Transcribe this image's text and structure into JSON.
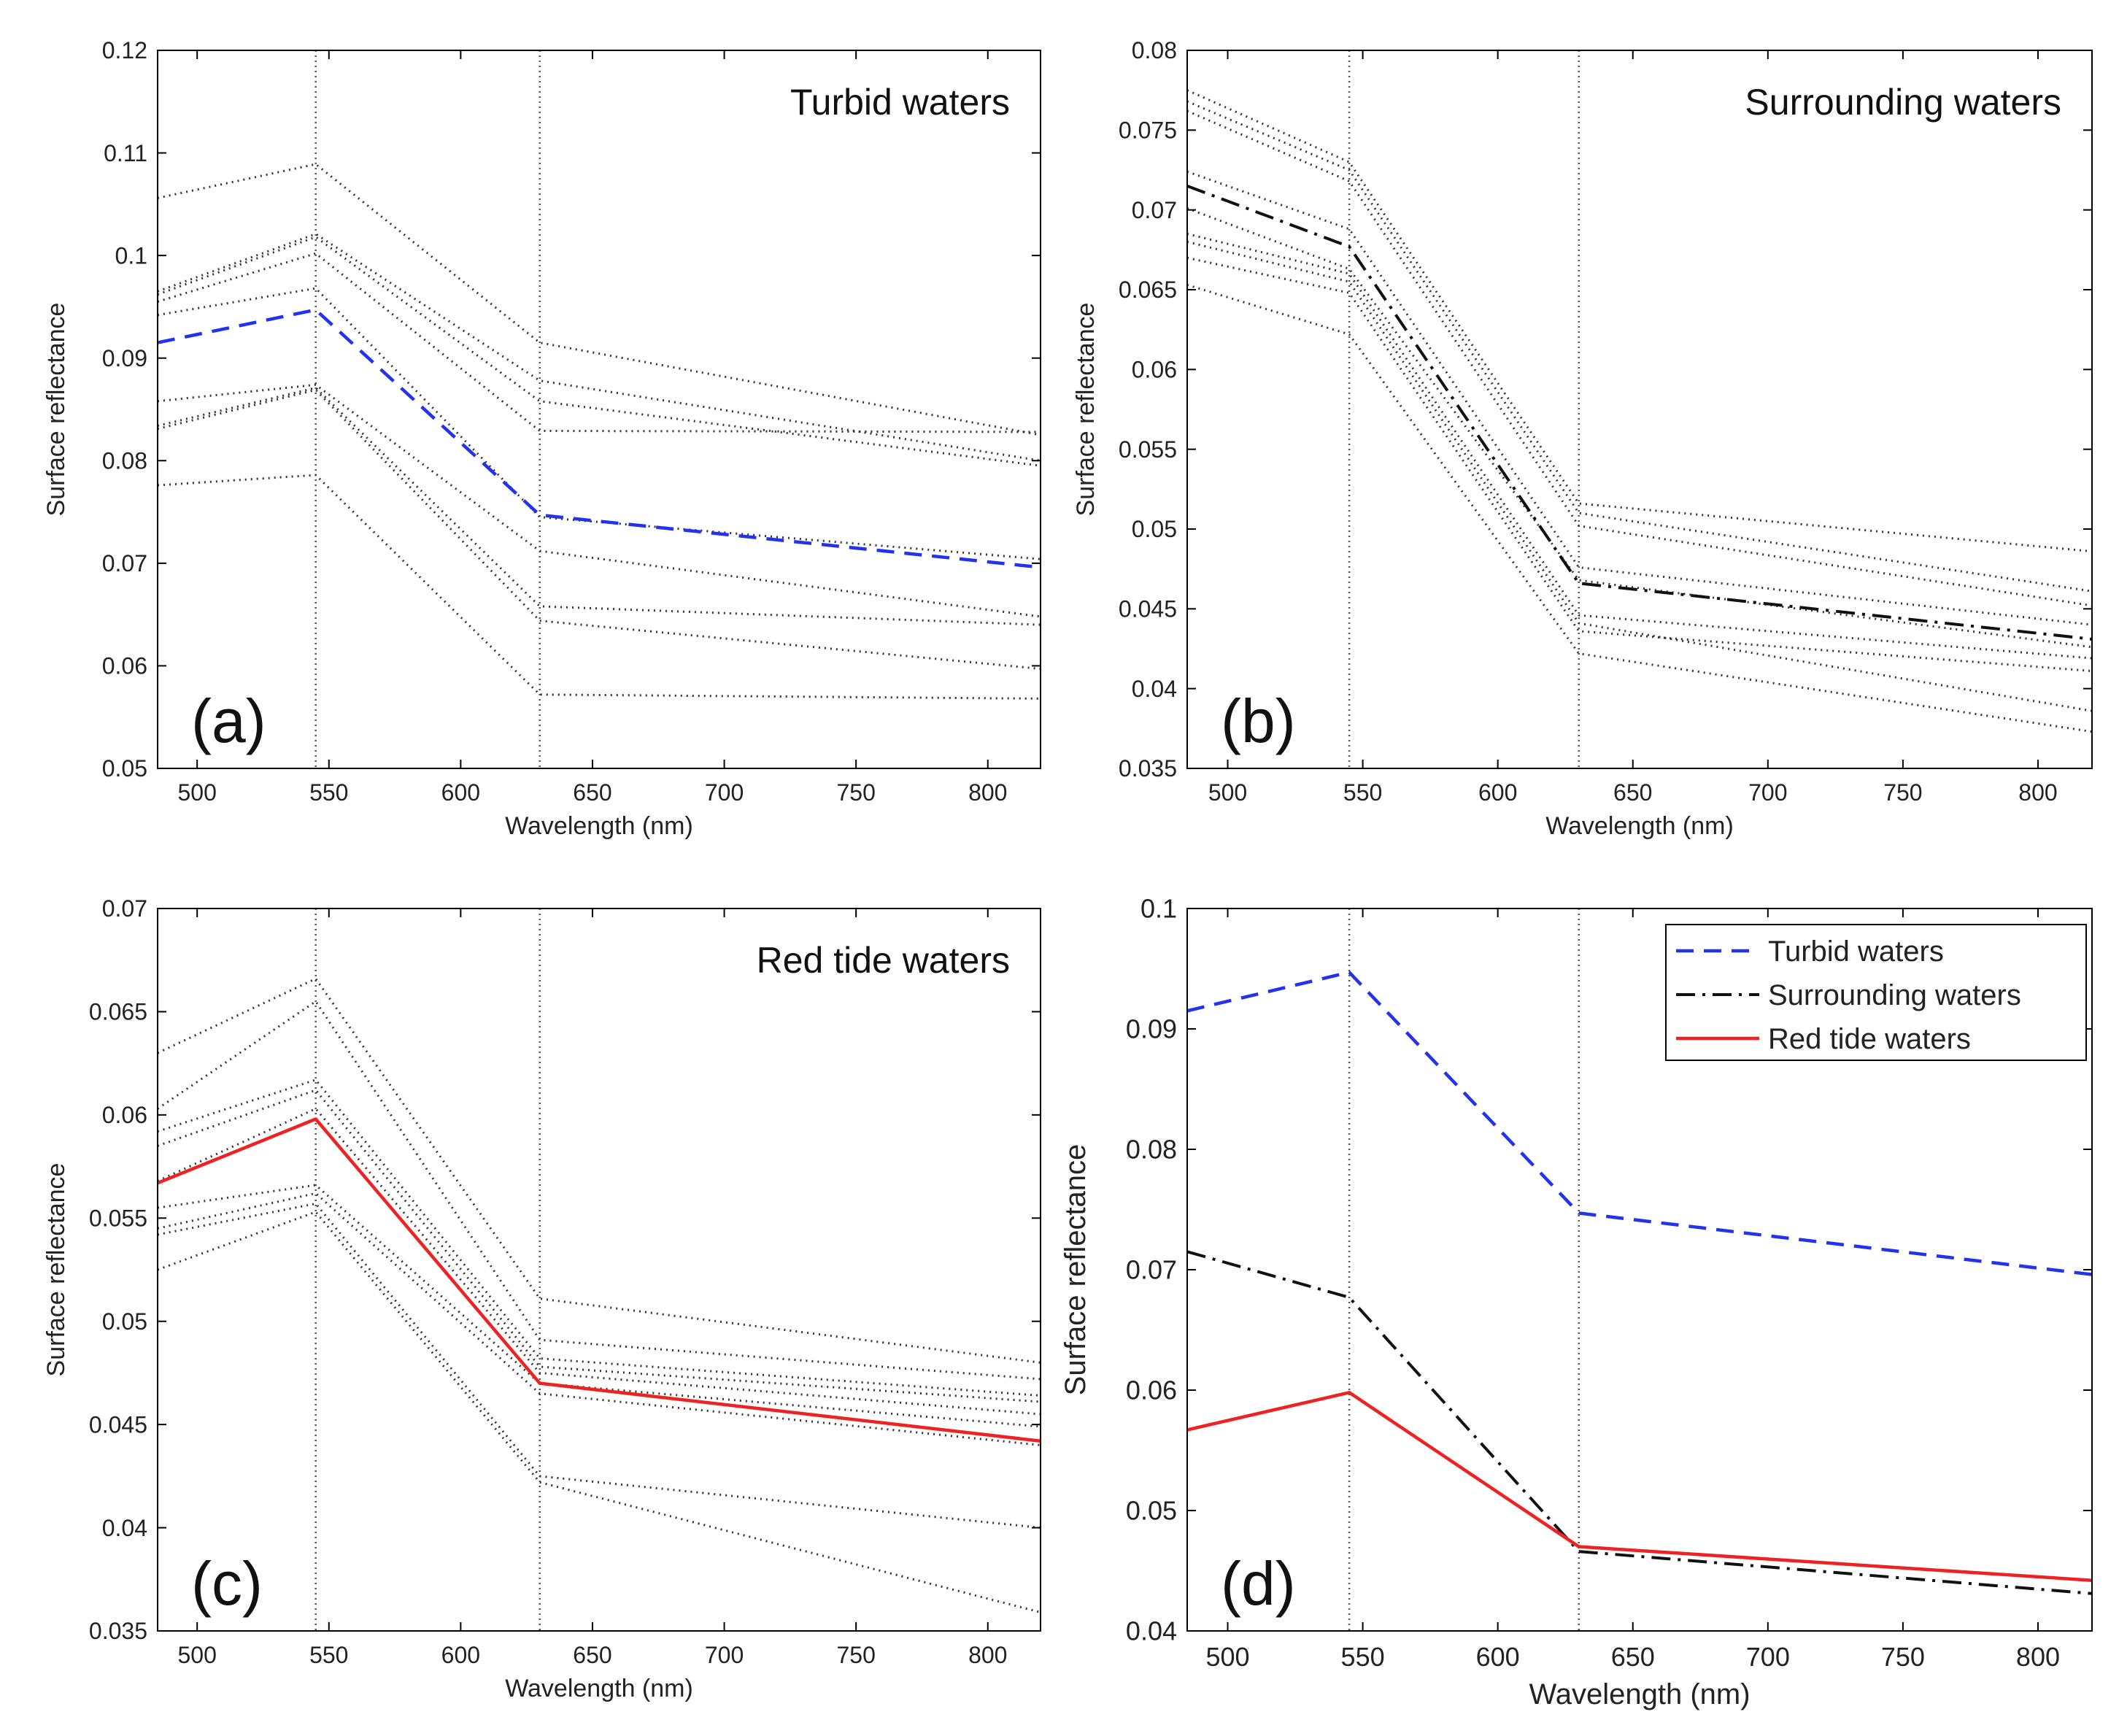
{
  "figure": {
    "x_label": "Wavelength (nm)",
    "y_label": "Surface reflectance"
  },
  "colors": {
    "turbid": "#2233ee",
    "surrounding": "#111111",
    "redtide": "#ee2222",
    "sample": "#333333",
    "vline": "#555555"
  },
  "chart_data": [
    {
      "type": "line",
      "panel": "a",
      "tag": "(a)",
      "title": "Turbid waters",
      "xlabel": "Wavelength (nm)",
      "ylabel": "Surface reflectance",
      "xlim": [
        485,
        820
      ],
      "ylim": [
        0.05,
        0.12
      ],
      "x_ticks": [
        500,
        550,
        600,
        650,
        700,
        750,
        800
      ],
      "y_ticks": [
        0.05,
        0.06,
        0.07,
        0.08,
        0.09,
        0.1,
        0.11,
        0.12
      ],
      "x_tick_labels": [
        "500",
        "550",
        "600",
        "650",
        "700",
        "750",
        "800"
      ],
      "y_tick_labels": [
        "0.05",
        "0.06",
        "0.07",
        "0.08",
        "0.09",
        "0.1",
        "0.11",
        "0.12"
      ],
      "vertical_lines": [
        545,
        630
      ],
      "x": [
        485,
        545,
        630,
        820
      ],
      "samples": [
        [
          0.1056,
          0.1089,
          0.0915,
          0.0825
        ],
        [
          0.0965,
          0.1021,
          0.0878,
          0.08
        ],
        [
          0.0962,
          0.1018,
          0.0858,
          0.0795
        ],
        [
          0.0955,
          0.1002,
          0.0829,
          0.0828
        ],
        [
          0.0942,
          0.0968,
          0.0745,
          0.0704
        ],
        [
          0.0858,
          0.0874,
          0.0712,
          0.0648
        ],
        [
          0.0834,
          0.0871,
          0.0658,
          0.064
        ],
        [
          0.0831,
          0.0869,
          0.0644,
          0.0597
        ],
        [
          0.0776,
          0.0786,
          0.0572,
          0.0568
        ]
      ],
      "series": [
        {
          "name": "Turbid waters mean",
          "style": "turbid",
          "values": [
            0.0915,
            0.0947,
            0.0747,
            0.0696
          ]
        }
      ]
    },
    {
      "type": "line",
      "panel": "b",
      "tag": "(b)",
      "title": "Surrounding waters",
      "xlabel": "Wavelength (nm)",
      "ylabel": "Surface reflectance",
      "xlim": [
        485,
        820
      ],
      "ylim": [
        0.035,
        0.08
      ],
      "x_ticks": [
        500,
        550,
        600,
        650,
        700,
        750,
        800
      ],
      "y_ticks": [
        0.035,
        0.04,
        0.045,
        0.05,
        0.055,
        0.06,
        0.065,
        0.07,
        0.075,
        0.08
      ],
      "x_tick_labels": [
        "500",
        "550",
        "600",
        "650",
        "700",
        "750",
        "800"
      ],
      "y_tick_labels": [
        "0.035",
        "0.04",
        "0.045",
        "0.05",
        "0.055",
        "0.06",
        "0.065",
        "0.07",
        "0.075",
        "0.08"
      ],
      "vertical_lines": [
        545,
        630
      ],
      "x": [
        485,
        545,
        630,
        820
      ],
      "samples": [
        [
          0.0775,
          0.073,
          0.0516,
          0.0486
        ],
        [
          0.0768,
          0.0725,
          0.051,
          0.0461
        ],
        [
          0.0762,
          0.0718,
          0.0502,
          0.0452
        ],
        [
          0.0724,
          0.0688,
          0.0476,
          0.044
        ],
        [
          0.0701,
          0.0663,
          0.0468,
          0.0426
        ],
        [
          0.0685,
          0.066,
          0.0446,
          0.0419
        ],
        [
          0.068,
          0.0655,
          0.0441,
          0.0386
        ],
        [
          0.067,
          0.0648,
          0.0436,
          0.0411
        ],
        [
          0.0653,
          0.0622,
          0.0422,
          0.0373
        ]
      ],
      "series": [
        {
          "name": "Surrounding waters mean",
          "style": "surrounding",
          "values": [
            0.0715,
            0.0677,
            0.0466,
            0.0431
          ]
        }
      ]
    },
    {
      "type": "line",
      "panel": "c",
      "tag": "(c)",
      "title": "Red tide waters",
      "xlabel": "Wavelength (nm)",
      "ylabel": "Surface reflectance",
      "xlim": [
        485,
        820
      ],
      "ylim": [
        0.035,
        0.07
      ],
      "x_ticks": [
        500,
        550,
        600,
        650,
        700,
        750,
        800
      ],
      "y_ticks": [
        0.035,
        0.04,
        0.045,
        0.05,
        0.055,
        0.06,
        0.065,
        0.07
      ],
      "x_tick_labels": [
        "500",
        "550",
        "600",
        "650",
        "700",
        "750",
        "800"
      ],
      "y_tick_labels": [
        "0.035",
        "0.04",
        "0.045",
        "0.05",
        "0.055",
        "0.06",
        "0.065",
        "0.07"
      ],
      "vertical_lines": [
        545,
        630
      ],
      "x": [
        485,
        545,
        630,
        820
      ],
      "samples": [
        [
          0.063,
          0.0666,
          0.0511,
          0.048
        ],
        [
          0.0603,
          0.0655,
          0.0491,
          0.0472
        ],
        [
          0.0592,
          0.0617,
          0.0482,
          0.0464
        ],
        [
          0.0585,
          0.0612,
          0.0478,
          0.0461
        ],
        [
          0.0568,
          0.0603,
          0.0475,
          0.0455
        ],
        [
          0.0555,
          0.0566,
          0.047,
          0.0449
        ],
        [
          0.0545,
          0.0562,
          0.0465,
          0.044
        ],
        [
          0.0542,
          0.0557,
          0.0425,
          0.04
        ],
        [
          0.0525,
          0.0553,
          0.0422,
          0.0359
        ]
      ],
      "series": [
        {
          "name": "Red tide waters mean",
          "style": "redtide",
          "values": [
            0.0567,
            0.0598,
            0.047,
            0.0442
          ]
        }
      ]
    },
    {
      "type": "line",
      "panel": "d",
      "tag": "(d)",
      "title": "",
      "xlabel": "Wavelength (nm)",
      "ylabel": "Surface reflectance",
      "xlim": [
        485,
        820
      ],
      "ylim": [
        0.04,
        0.1
      ],
      "x_ticks": [
        500,
        550,
        600,
        650,
        700,
        750,
        800
      ],
      "y_ticks": [
        0.04,
        0.05,
        0.06,
        0.07,
        0.08,
        0.09,
        0.1
      ],
      "x_tick_labels": [
        "500",
        "550",
        "600",
        "650",
        "700",
        "750",
        "800"
      ],
      "y_tick_labels": [
        "0.04",
        "0.05",
        "0.06",
        "0.07",
        "0.08",
        "0.09",
        "0.1"
      ],
      "vertical_lines": [
        545,
        630
      ],
      "x": [
        485,
        545,
        630,
        820
      ],
      "samples": [],
      "legend_position": "top-right",
      "series": [
        {
          "name": "Turbid waters",
          "style": "turbid",
          "values": [
            0.0915,
            0.0947,
            0.0747,
            0.0696
          ]
        },
        {
          "name": "Surrounding waters",
          "style": "surrounding",
          "values": [
            0.0715,
            0.0677,
            0.0466,
            0.0431
          ]
        },
        {
          "name": "Red tide waters",
          "style": "redtide",
          "values": [
            0.0567,
            0.0598,
            0.047,
            0.0442
          ]
        }
      ]
    }
  ]
}
